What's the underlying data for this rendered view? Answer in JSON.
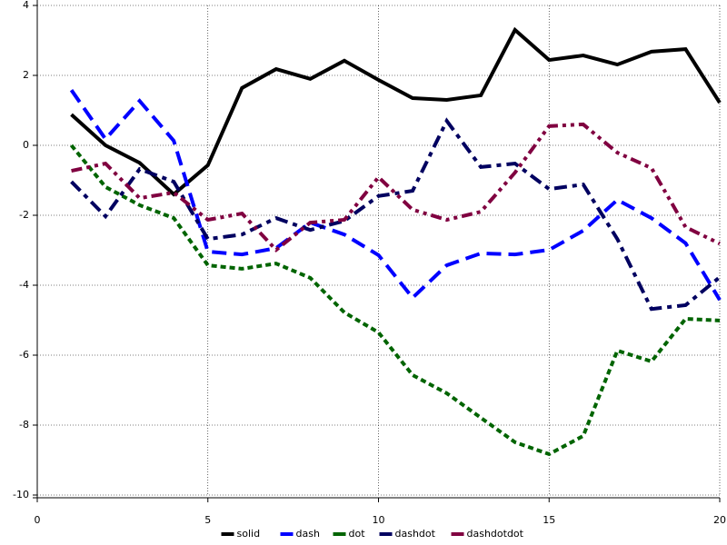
{
  "chart_data": {
    "type": "line",
    "x": [
      1,
      2,
      3,
      4,
      5,
      6,
      7,
      8,
      9,
      10,
      11,
      12,
      13,
      14,
      15,
      16,
      17,
      18,
      19,
      20
    ],
    "series": [
      {
        "name": "solid",
        "color": "#000000",
        "values": [
          0.88,
          0,
          -0.5,
          -1.4,
          -0.57,
          1.64,
          2.18,
          1.9,
          2.42,
          1.87,
          1.35,
          1.3,
          1.43,
          3.3,
          2.44,
          2.57,
          2.31,
          2.68,
          2.75,
          1.22
        ]
      },
      {
        "name": "dash",
        "color": "#0000ff",
        "values": [
          1.58,
          0.18,
          1.27,
          0.13,
          -3.04,
          -3.12,
          -2.94,
          -2.21,
          -2.55,
          -3.14,
          -4.36,
          -3.43,
          -3.09,
          -3.12,
          -2.99,
          -2.44,
          -1.56,
          -2.08,
          -2.8,
          -4.42
        ]
      },
      {
        "name": "dot",
        "color": "#006400",
        "values": [
          0,
          -1.19,
          -1.71,
          -2.08,
          -3.43,
          -3.53,
          -3.38,
          -3.79,
          -4.78,
          -5.35,
          -6.57,
          -7.09,
          -7.79,
          -8.49,
          -8.83,
          -8.31,
          -5.87,
          -6.18,
          -4.96,
          -5.01
        ]
      },
      {
        "name": "dashdot",
        "color": "#000060",
        "values": [
          -1.04,
          -2.03,
          -0.68,
          -1.04,
          -2.68,
          -2.55,
          -2.08,
          -2.42,
          -2.16,
          -1.45,
          -1.3,
          0.7,
          -0.62,
          -0.52,
          -1.25,
          -1.12,
          -2.68,
          -4.68,
          -4.57,
          -3.77
        ]
      },
      {
        "name": "dashdotdot",
        "color": "#800040",
        "values": [
          -0.73,
          -0.52,
          -1.51,
          -1.35,
          -2.13,
          -1.95,
          -2.99,
          -2.21,
          -2.13,
          -0.91,
          -1.84,
          -2.13,
          -1.9,
          -0.78,
          0.55,
          0.6,
          -0.21,
          -0.65,
          -2.34,
          -2.81
        ]
      }
    ],
    "xlim": [
      0,
      20
    ],
    "xticks": [
      0,
      5,
      10,
      15,
      20
    ],
    "ylim": [
      -10,
      4
    ],
    "yticks": [
      -10,
      -8,
      -6,
      -4,
      -2,
      0,
      2,
      4
    ],
    "grid": true,
    "legend": "bottom"
  }
}
